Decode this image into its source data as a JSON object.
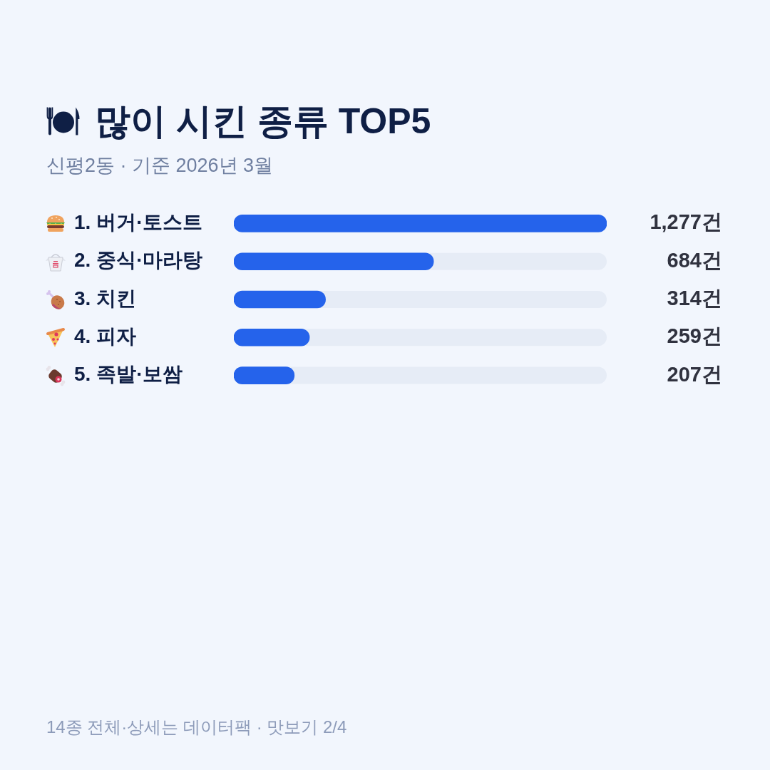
{
  "chart_data": {
    "type": "bar",
    "orientation": "horizontal",
    "title": "많이 시킨 종류 TOP5",
    "subtitle": "신평2동 · 기준 2026년 3월",
    "categories": [
      "1. 버거·토스트",
      "2. 중식·마라탕",
      "3. 치킨",
      "4. 피자",
      "5. 족발·보쌈"
    ],
    "values": [
      1277,
      684,
      314,
      259,
      207
    ],
    "color": "#2563eb",
    "value_labels": [
      "1,277건",
      "684건",
      "314건",
      "259건",
      "207건"
    ],
    "xlim": [
      0,
      1277
    ],
    "tick_labels": "y",
    "annotations": [
      "14종 전체·상세는 데이터팩 · 맛보기 2/4"
    ]
  }
}
